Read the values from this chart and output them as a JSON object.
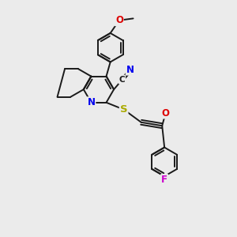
{
  "background_color": "#ebebeb",
  "bond_color": "#1a1a1a",
  "bond_width": 1.4,
  "atom_colors": {
    "N": "#0000ee",
    "O": "#dd0000",
    "S": "#aaaa00",
    "F": "#cc00cc",
    "C": "#1a1a1a"
  },
  "font_size": 7.5,
  "figsize": [
    3.0,
    3.0
  ],
  "dpi": 100,
  "xlim": [
    0,
    10
  ],
  "ylim": [
    0,
    10
  ]
}
